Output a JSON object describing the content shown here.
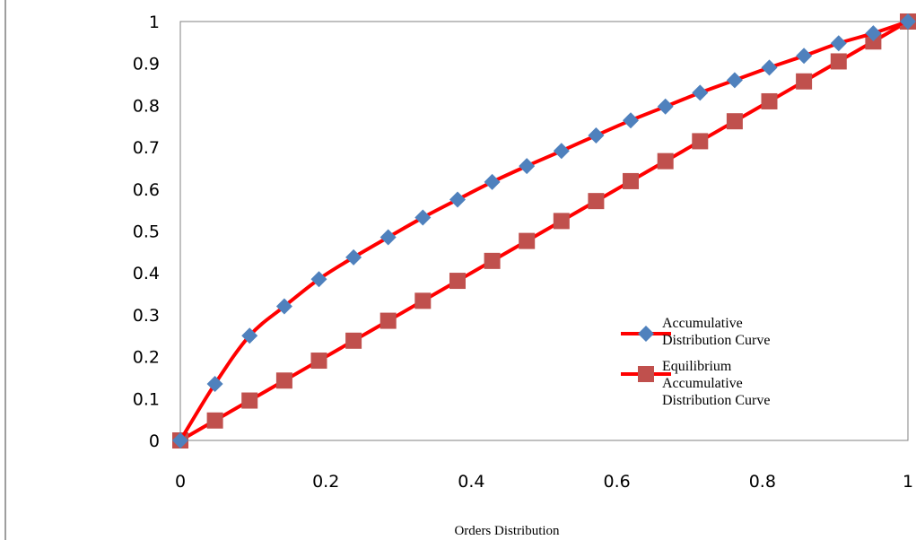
{
  "chart_data": {
    "type": "line",
    "title": "",
    "xlabel": "Orders Distribution",
    "ylabel": "",
    "xlim": [
      0,
      1
    ],
    "ylim": [
      0,
      1
    ],
    "xticks": [
      "0",
      "0.2",
      "0.4",
      "0.6",
      "0.8",
      "1"
    ],
    "yticks": [
      "0",
      "0.1",
      "0.2",
      "0.3",
      "0.4",
      "0.5",
      "0.6",
      "0.7",
      "0.8",
      "0.9",
      "1"
    ],
    "grid": false,
    "legend_position": "bottom-right",
    "series": [
      {
        "name": "Accumulative Distribution Curve",
        "line_color": "#ff0000",
        "marker": "diamond",
        "marker_color": "#4f81bd",
        "x": [
          0,
          0.0476,
          0.0952,
          0.1429,
          0.1905,
          0.2381,
          0.2857,
          0.3333,
          0.381,
          0.4286,
          0.4762,
          0.5238,
          0.5714,
          0.619,
          0.6667,
          0.7143,
          0.7619,
          0.8095,
          0.8571,
          0.9048,
          0.9524,
          1
        ],
        "y": [
          0,
          0.135,
          0.25,
          0.32,
          0.385,
          0.437,
          0.485,
          0.532,
          0.575,
          0.617,
          0.655,
          0.691,
          0.728,
          0.764,
          0.797,
          0.83,
          0.86,
          0.89,
          0.918,
          0.948,
          0.972,
          1
        ]
      },
      {
        "name": "Equilibrium Accumulative Distribution Curve",
        "line_color": "#ff0000",
        "marker": "square",
        "marker_color": "#c0504d",
        "x": [
          0,
          0.0476,
          0.0952,
          0.1429,
          0.1905,
          0.2381,
          0.2857,
          0.3333,
          0.381,
          0.4286,
          0.4762,
          0.5238,
          0.5714,
          0.619,
          0.6667,
          0.7143,
          0.7619,
          0.8095,
          0.8571,
          0.9048,
          0.9524,
          1
        ],
        "y": [
          0,
          0.0476,
          0.0952,
          0.1429,
          0.1905,
          0.2381,
          0.2857,
          0.3333,
          0.381,
          0.4286,
          0.4762,
          0.5238,
          0.5714,
          0.619,
          0.6667,
          0.7143,
          0.7619,
          0.8095,
          0.8571,
          0.9048,
          0.9524,
          1
        ]
      }
    ],
    "legend": [
      {
        "lines": [
          "Accumulative",
          "Distribution Curve"
        ]
      },
      {
        "lines": [
          "Equilibrium",
          "Accumulative",
          "Distribution Curve"
        ]
      }
    ]
  }
}
